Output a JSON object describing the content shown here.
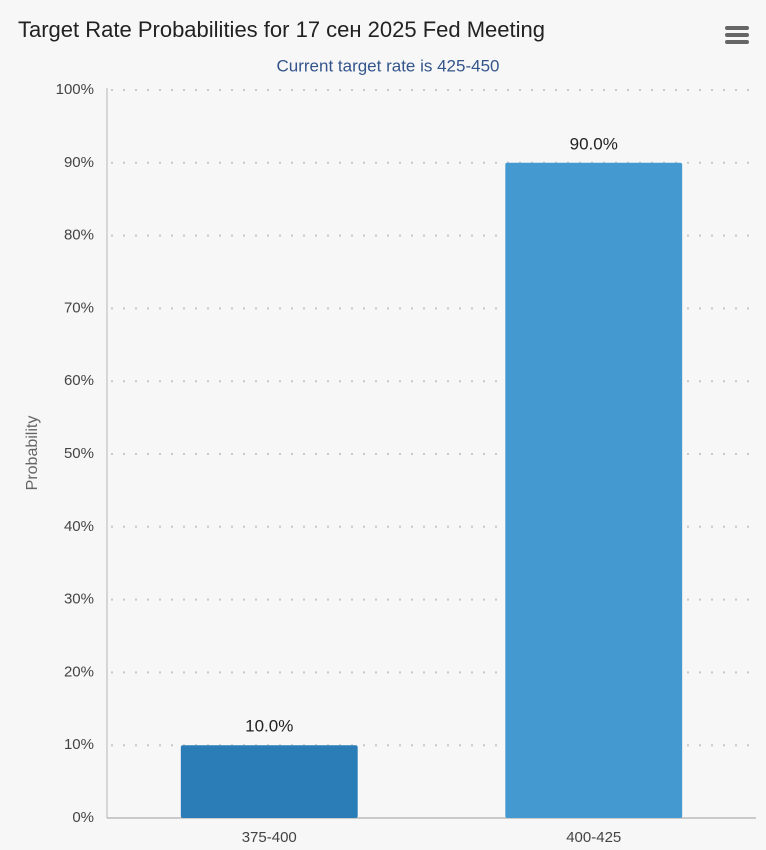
{
  "chart_data": {
    "type": "bar",
    "title": "Target Rate Probabilities for 17 сен 2025 Fed Meeting",
    "subtitle": "Current target rate is 425-450",
    "y_label": "Probability",
    "categories": [
      "375-400",
      "400-425"
    ],
    "values": [
      10,
      90
    ],
    "value_labels": [
      "10.0%",
      "90.0%"
    ],
    "colors": [
      "#2b7db7",
      "#4499d1"
    ],
    "ylim": [
      0,
      100
    ],
    "yticks": [
      {
        "value": 0,
        "label": "0%"
      },
      {
        "value": 10,
        "label": "10%"
      },
      {
        "value": 20,
        "label": "20%"
      },
      {
        "value": 30,
        "label": "30%"
      },
      {
        "value": 40,
        "label": "40%"
      },
      {
        "value": 50,
        "label": "50%"
      },
      {
        "value": 60,
        "label": "60%"
      },
      {
        "value": 70,
        "label": "70%"
      },
      {
        "value": 80,
        "label": "80%"
      },
      {
        "value": 90,
        "label": "90%"
      },
      {
        "value": 100,
        "label": "100%"
      }
    ],
    "grid": true
  }
}
